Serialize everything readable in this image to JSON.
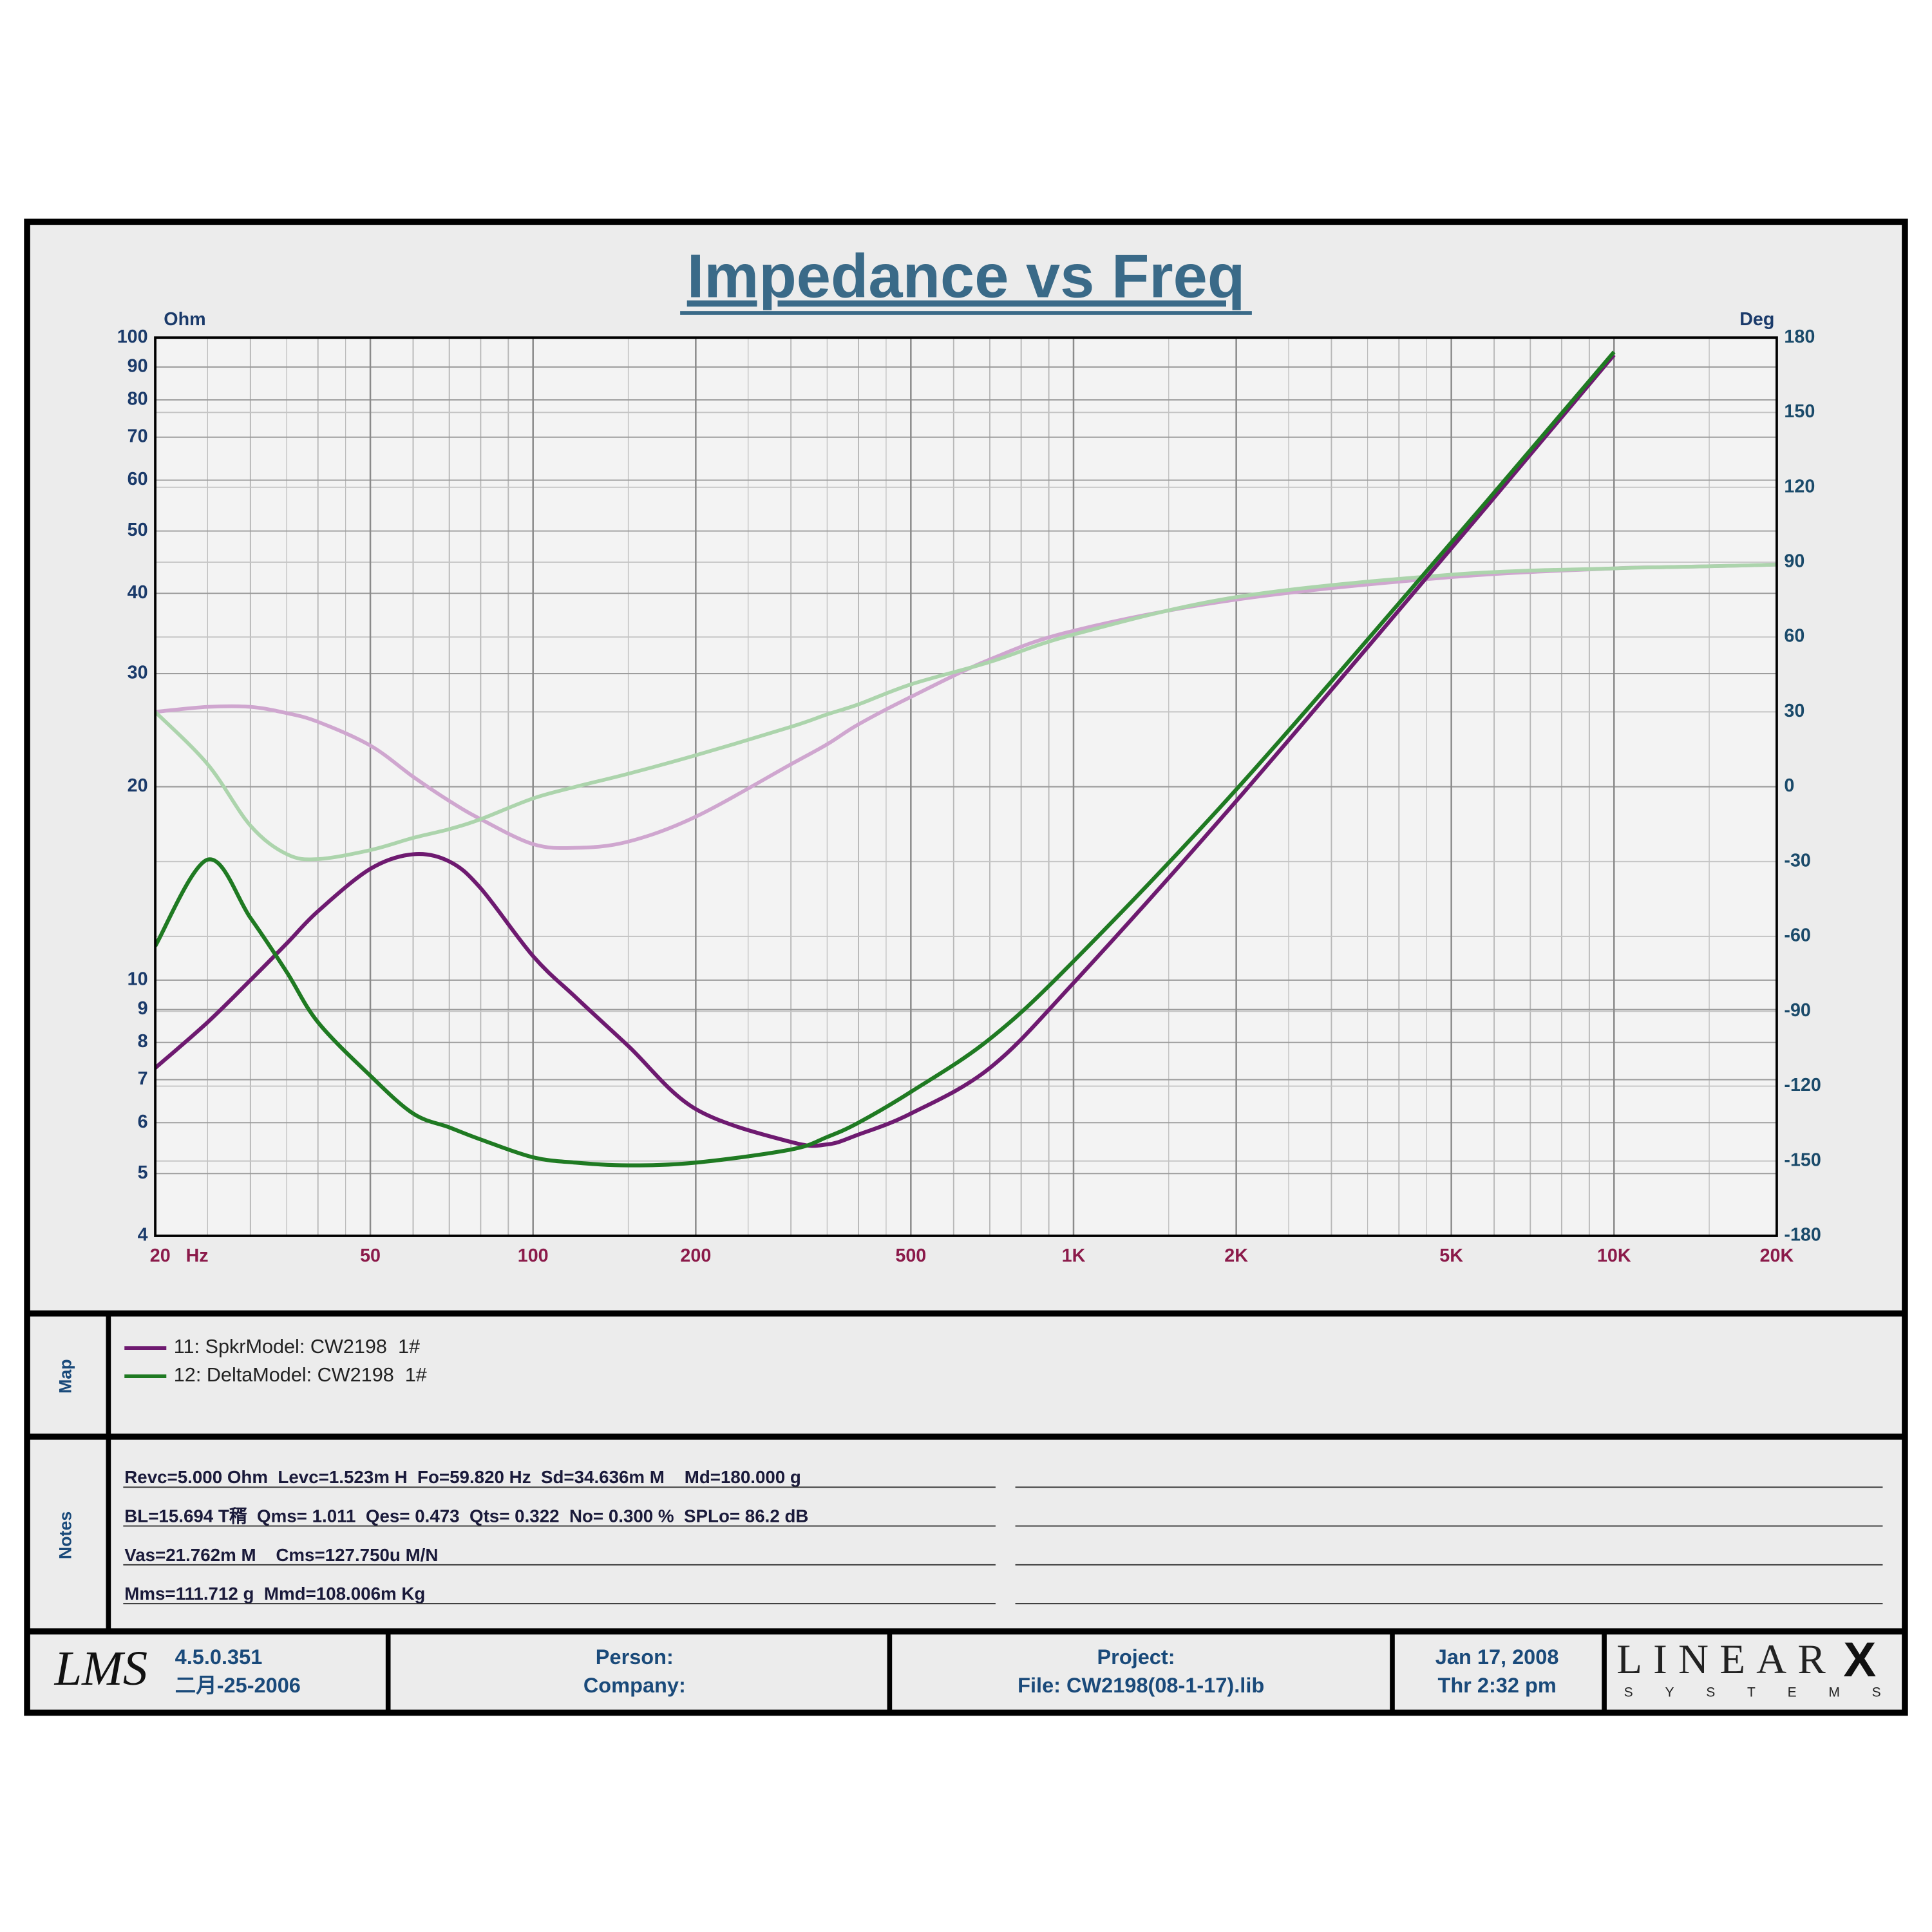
{
  "chart_data": {
    "type": "line",
    "title": "Impedance vs Freq",
    "ylabel": "Ohm",
    "y2label": "Deg",
    "x_unit": "Hz",
    "x": [
      20,
      25,
      30,
      35,
      40,
      50,
      60,
      70,
      80,
      100,
      120,
      150,
      200,
      300,
      350,
      400,
      500,
      700,
      1000,
      2000,
      5000,
      10000,
      12500,
      16000,
      20000
    ],
    "series": [
      {
        "name": "11: SpkrModel: CW2198  1#",
        "color": "#6e1a70",
        "values": [
          7.3,
          8.6,
          10,
          11.4,
          12.8,
          14.9,
          15.7,
          15.3,
          13.9,
          10.9,
          9.4,
          7.9,
          6.3,
          5.6,
          5.55,
          5.75,
          6.2,
          7.3,
          9.9,
          19,
          47,
          94,
          null,
          null,
          null
        ]
      },
      {
        "name": "12: DeltaModel: CW2198  1#",
        "color": "#1f7a22",
        "values": [
          11.3,
          15.4,
          12.5,
          10.3,
          8.6,
          7.1,
          6.2,
          5.9,
          5.65,
          5.3,
          5.2,
          5.15,
          5.2,
          5.45,
          5.7,
          6,
          6.7,
          8.1,
          10.7,
          19.8,
          48,
          95,
          null,
          null,
          null
        ]
      },
      {
        "color": "#cfa6cf",
        "axis": "y2",
        "values": [
          30,
          32,
          32,
          29.5,
          26,
          16.5,
          4,
          -5.7,
          -13,
          -23,
          -24.5,
          -22,
          -12,
          9,
          17,
          25,
          36,
          51,
          62.5,
          75,
          84,
          87.5,
          88,
          88.5,
          89
        ]
      },
      {
        "color": "#acd4ac",
        "axis": "y2",
        "values": [
          30,
          9,
          -15.6,
          -27,
          -29,
          -25.4,
          -20.5,
          -17,
          -13,
          -4.7,
          0,
          5.2,
          12.6,
          24,
          29,
          33,
          41,
          50,
          61,
          76,
          85,
          87.5,
          88,
          88.5,
          89
        ]
      }
    ],
    "xlim": [
      20,
      20000
    ],
    "xlog": true,
    "xticks": [
      20,
      50,
      100,
      200,
      500,
      {
        "value": 1000,
        "label": "1K"
      },
      {
        "value": 2000,
        "label": "2K"
      },
      {
        "value": 5000,
        "label": "5K"
      },
      {
        "value": 10000,
        "label": "10K"
      },
      {
        "value": 20000,
        "label": "20K"
      }
    ],
    "ylim": [
      4,
      100
    ],
    "ylog": true,
    "yticks": [
      4,
      5,
      6,
      7,
      8,
      9,
      10,
      20,
      30,
      40,
      50,
      60,
      70,
      80,
      90,
      100
    ],
    "y2lim": [
      -180,
      180
    ],
    "y2ticks": [
      -180,
      -150,
      -120,
      -90,
      -60,
      -30,
      0,
      30,
      60,
      90,
      120,
      150,
      180
    ],
    "grid": true
  },
  "logo": "LMS",
  "map_label": "Map",
  "notes_label": "Notes",
  "notes": [
    "Revc=5.000 Ohm  Levc=1.523m H  Fo=59.820 Hz  Sd=34.636m M    Md=180.000 g",
    "BL=15.694 T稰  Qms= 1.011  Qes= 0.473  Qts= 0.322  No= 0.300 %  SPLo= 86.2 dB",
    "Vas=21.762m M    Cms=127.750u M/N",
    "Mms=111.712 g  Mmd=108.006m Kg"
  ],
  "footer": {
    "version": "4.5.0.351",
    "build_date": "二月-25-2006",
    "person": "Person:",
    "company": "Company:",
    "project": "Project:",
    "file": "File: CW2198(08-1-17).lib",
    "date": "Jan 17, 2008",
    "time": "Thr  2:32 pm",
    "brand": "LINEAR",
    "brand_x": "X",
    "brand_sub": "SYSTEMS"
  }
}
